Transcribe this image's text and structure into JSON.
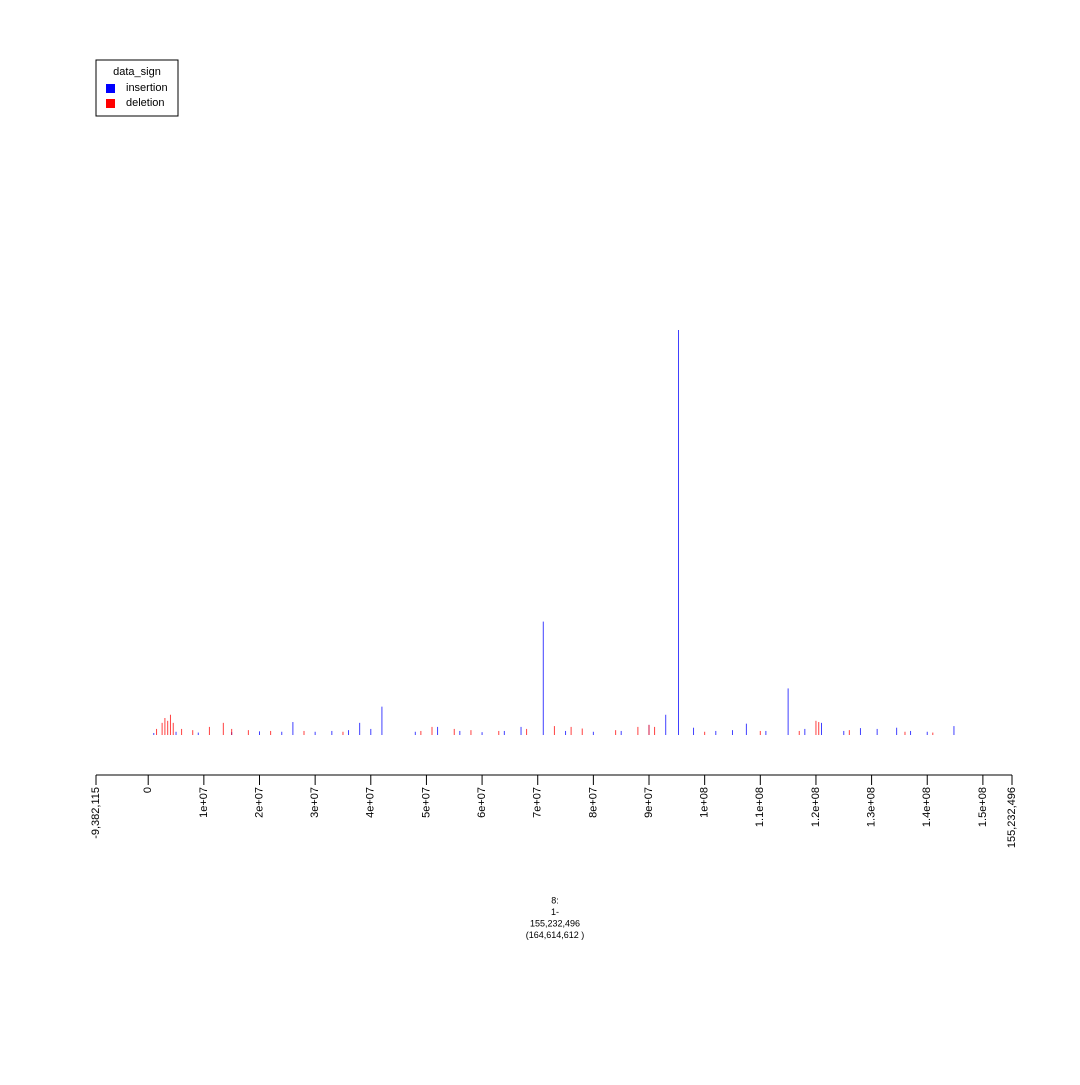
{
  "chart_data": {
    "type": "spike",
    "legend_title": "data_sign",
    "legend_position": "topleft",
    "x_label_lines": [
      "8:",
      "1-",
      "155,232,496",
      "(164,614,612 )"
    ],
    "xlim": [
      -9382115,
      155232496
    ],
    "xticks": [
      {
        "value": -9382115,
        "label": "-9,382,115"
      },
      0,
      {
        "value": 10000000,
        "label": "1e+07"
      },
      {
        "value": 20000000,
        "label": "2e+07"
      },
      {
        "value": 30000000,
        "label": "3e+07"
      },
      {
        "value": 40000000,
        "label": "4e+07"
      },
      {
        "value": 50000000,
        "label": "5e+07"
      },
      {
        "value": 60000000,
        "label": "6e+07"
      },
      {
        "value": 70000000,
        "label": "7e+07"
      },
      {
        "value": 80000000,
        "label": "8e+07"
      },
      {
        "value": 90000000,
        "label": "9e+07"
      },
      {
        "value": 100000000,
        "label": "1e+08"
      },
      {
        "value": 110000000,
        "label": "1.1e+08"
      },
      {
        "value": 120000000,
        "label": "1.2e+08"
      },
      {
        "value": 130000000,
        "label": "1.3e+08"
      },
      {
        "value": 140000000,
        "label": "1.4e+08"
      },
      {
        "value": 150000000,
        "label": "1.5e+08"
      },
      {
        "value": 155232496,
        "label": "155,232,496"
      }
    ],
    "ylim": [
      0,
      100
    ],
    "series": [
      {
        "name": "insertion",
        "color": "#0000ff",
        "x": [
          1000000,
          5000000,
          9000000,
          15000000,
          20000000,
          24000000,
          26000000,
          30000000,
          33000000,
          36000000,
          38000000,
          40000000,
          42000000,
          48000000,
          52000000,
          56000000,
          60000000,
          64000000,
          67000000,
          71000000,
          75000000,
          80000000,
          85000000,
          90000000,
          93000000,
          95300000,
          98000000,
          102000000,
          105000000,
          107500000,
          111000000,
          115000000,
          118000000,
          121000000,
          125000000,
          128000000,
          131000000,
          134500000,
          137000000,
          140000000,
          144800000
        ],
        "values": [
          0.5,
          0.8,
          0.6,
          0.7,
          0.9,
          0.8,
          3.2,
          0.8,
          1,
          1.2,
          3,
          1.5,
          7,
          0.8,
          2,
          1,
          0.7,
          1,
          2,
          28,
          1,
          0.8,
          1,
          2.5,
          5,
          100,
          1.8,
          1,
          1.2,
          2.8,
          1,
          11.5,
          1.5,
          3,
          1,
          1.7,
          1.5,
          1.8,
          1,
          0.8,
          2.2
        ]
      },
      {
        "name": "deletion",
        "color": "#ff0000",
        "x": [
          1500000,
          2500000,
          3000000,
          3500000,
          4000000,
          4500000,
          6000000,
          8000000,
          11000000,
          13500000,
          15000000,
          18000000,
          22000000,
          28000000,
          35000000,
          49000000,
          51000000,
          55000000,
          58000000,
          63000000,
          68000000,
          73000000,
          76000000,
          78000000,
          84000000,
          88000000,
          90000000,
          91000000,
          100000000,
          110000000,
          117000000,
          120000000,
          120500000,
          126000000,
          136000000,
          141000000
        ],
        "values": [
          1.5,
          3,
          4.2,
          3.5,
          5,
          3,
          1.5,
          1.2,
          2,
          3,
          1.5,
          1.2,
          1,
          1,
          0.8,
          1,
          2,
          1.5,
          1.2,
          1,
          1.5,
          2.2,
          2,
          1.6,
          1.2,
          2,
          2.5,
          2,
          0.8,
          1,
          1,
          3.5,
          3.2,
          1.2,
          0.8,
          0.6
        ]
      }
    ]
  }
}
